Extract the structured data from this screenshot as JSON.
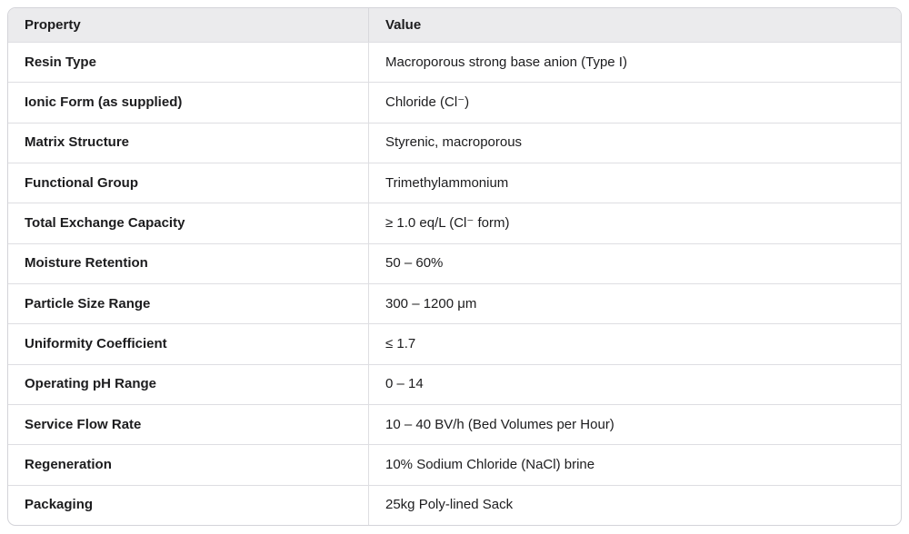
{
  "table": {
    "headers": {
      "property": "Property",
      "value": "Value"
    },
    "rows": [
      {
        "property": "Resin Type",
        "value": "Macroporous strong base anion (Type I)"
      },
      {
        "property": "Ionic Form (as supplied)",
        "value": "Chloride (Cl⁻)"
      },
      {
        "property": "Matrix Structure",
        "value": "Styrenic, macroporous"
      },
      {
        "property": "Functional Group",
        "value": "Trimethylammonium"
      },
      {
        "property": "Total Exchange Capacity",
        "value": "≥ 1.0 eq/L (Cl⁻ form)"
      },
      {
        "property": "Moisture Retention",
        "value": "50 – 60%"
      },
      {
        "property": "Particle Size Range",
        "value": "300 – 1200 μm"
      },
      {
        "property": "Uniformity Coefficient",
        "value": "≤ 1.7"
      },
      {
        "property": "Operating pH Range",
        "value": "0 – 14"
      },
      {
        "property": "Service Flow Rate",
        "value": "10 – 40 BV/h (Bed Volumes per Hour)"
      },
      {
        "property": "Regeneration",
        "value": "10% Sodium Chloride (NaCl) brine"
      },
      {
        "property": "Packaging",
        "value": "25kg Poly-lined Sack"
      }
    ],
    "colors": {
      "header_bg": "#ebebed",
      "border": "#d4d4d9",
      "row_divider": "#dedee2",
      "text": "#1c1c1e"
    }
  }
}
